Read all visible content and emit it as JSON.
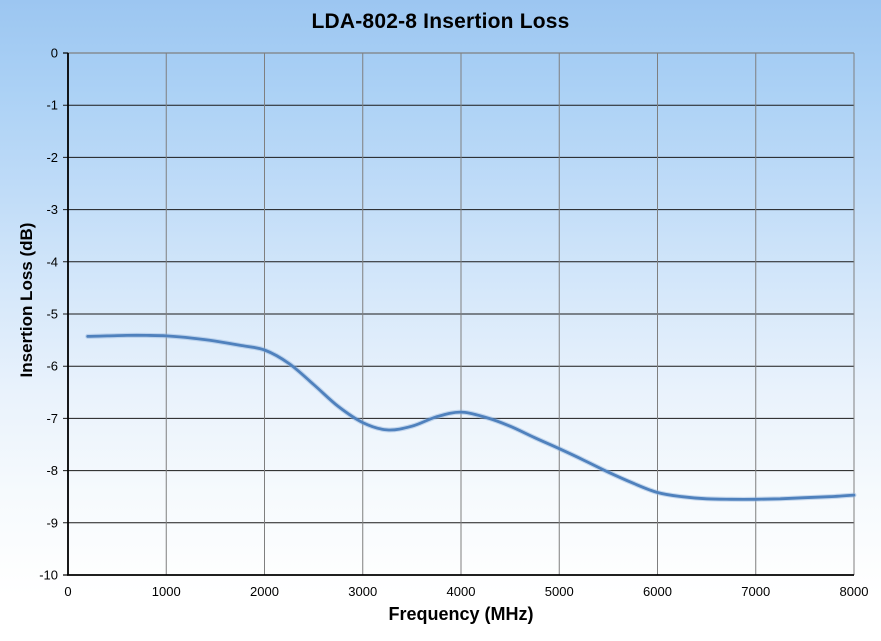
{
  "chart_data": {
    "type": "line",
    "title": "LDA-802-8 Insertion Loss",
    "xlabel": "Frequency (MHz)",
    "ylabel": "Insertion Loss (dB)",
    "xlim": [
      0,
      8000
    ],
    "ylim": [
      -10,
      0
    ],
    "xticks": [
      0,
      1000,
      2000,
      3000,
      4000,
      5000,
      6000,
      7000,
      8000
    ],
    "yticks": [
      0,
      -1,
      -2,
      -3,
      -4,
      -5,
      -6,
      -7,
      -8,
      -9,
      -10
    ],
    "grid": true,
    "legend_position": "none",
    "series": [
      {
        "name": "Insertion Loss",
        "color": "#4F81BD",
        "halo_color": "#8FB2DC",
        "x": [
          200,
          400,
          600,
          800,
          1000,
          1250,
          1500,
          1750,
          2000,
          2250,
          2500,
          2750,
          3000,
          3250,
          3500,
          3750,
          4000,
          4250,
          4500,
          4750,
          5000,
          5250,
          5500,
          5750,
          6000,
          6250,
          6500,
          6750,
          7000,
          7250,
          7500,
          7750,
          8000
        ],
        "y": [
          -5.43,
          -5.42,
          -5.41,
          -5.41,
          -5.42,
          -5.46,
          -5.52,
          -5.6,
          -5.69,
          -5.95,
          -6.35,
          -6.77,
          -7.08,
          -7.22,
          -7.15,
          -6.97,
          -6.88,
          -6.98,
          -7.15,
          -7.37,
          -7.58,
          -7.8,
          -8.03,
          -8.24,
          -8.42,
          -8.5,
          -8.54,
          -8.55,
          -8.55,
          -8.54,
          -8.52,
          -8.5,
          -8.47
        ]
      }
    ],
    "colors": {
      "h_gridline": "#1a1a1a",
      "v_gridline": "#7f7f7f",
      "axis": "#000000",
      "plot_border": "#7f7f7f"
    }
  }
}
